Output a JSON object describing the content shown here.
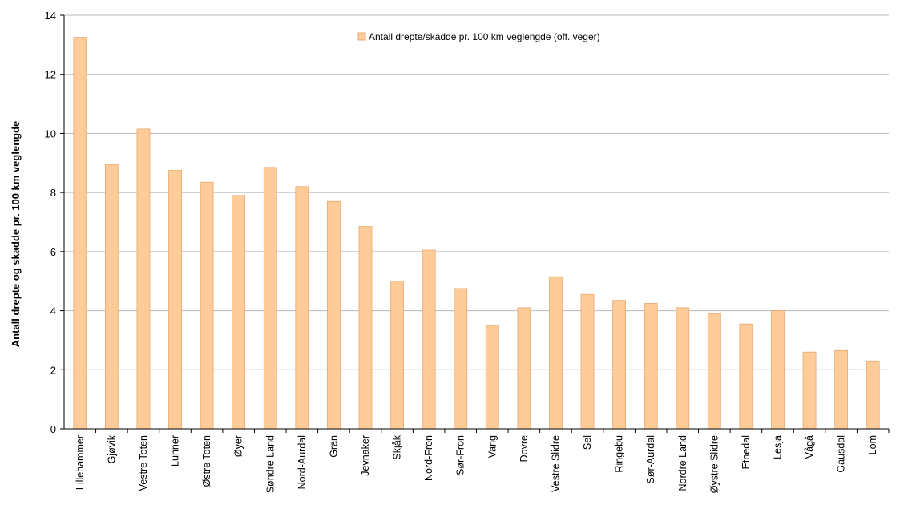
{
  "chart_data": {
    "type": "bar",
    "title": "",
    "xlabel": "",
    "ylabel": "Antall drepte og skadde pr. 100 km veglengde",
    "ylim": [
      0,
      14
    ],
    "yticks": [
      0,
      2,
      4,
      6,
      8,
      10,
      12,
      14
    ],
    "grid": true,
    "legend_position": "top-center",
    "categories": [
      "Lillehammer",
      "Gjøvik",
      "Vestre Toten",
      "Lunner",
      "Østre Toten",
      "Øyer",
      "Søndre Land",
      "Nord-Aurdal",
      "Gran",
      "Jevnaker",
      "Skjåk",
      "Nord-Fron",
      "Sør-Fron",
      "Vang",
      "Dovre",
      "Vestre Slidre",
      "Sel",
      "Ringebu",
      "Sør-Aurdal",
      "Nordre Land",
      "Øystre Slidre",
      "Etnedal",
      "Lesja",
      "Vågå",
      "Gausdal",
      "Lom"
    ],
    "series": [
      {
        "name": "Antall drepte/skadde pr. 100 km veglengde (off. veger)",
        "color": "#FFCC99",
        "stroke": "#E8A870",
        "values": [
          13.25,
          8.95,
          10.15,
          8.75,
          8.35,
          7.9,
          8.85,
          8.2,
          7.7,
          6.85,
          5.0,
          6.05,
          4.75,
          3.5,
          4.1,
          5.15,
          4.55,
          4.35,
          4.25,
          4.1,
          3.9,
          3.55,
          4.0,
          2.6,
          2.65,
          2.3
        ]
      }
    ]
  }
}
